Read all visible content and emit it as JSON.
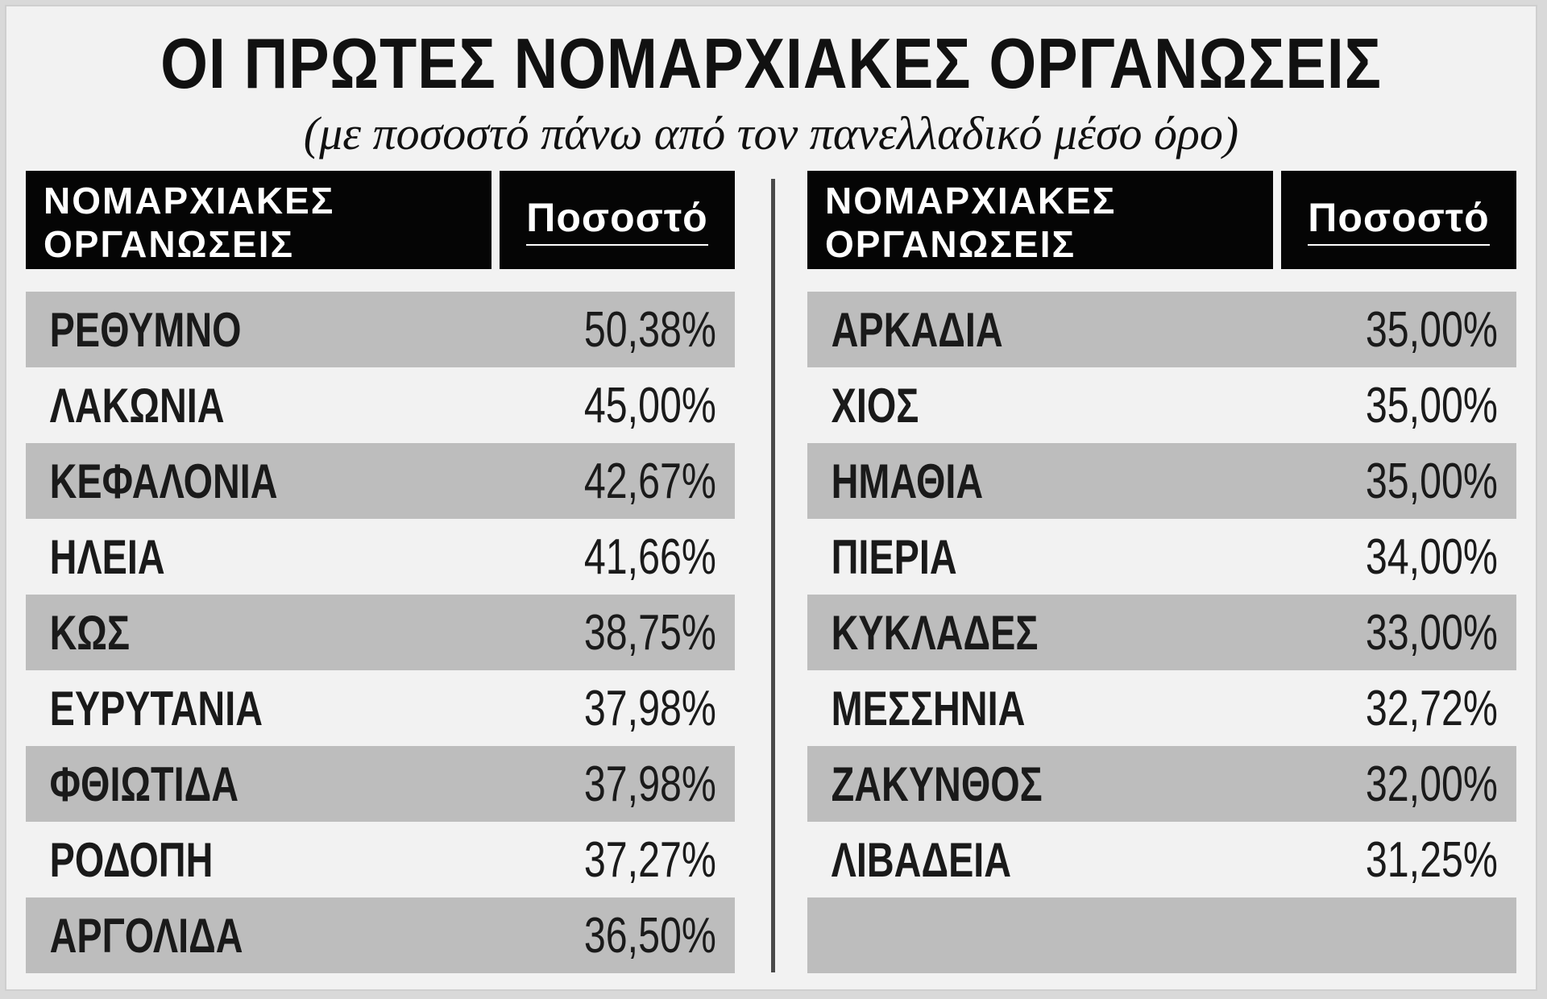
{
  "chart_data": {
    "type": "table",
    "title": "ΟΙ ΠΡΩΤΕΣ ΝΟΜΑΡΧΙΑΚΕΣ ΟΡΓΑΝΩΣΕΙΣ",
    "subtitle": "(με ποσοστό πάνω από τον πανελλαδικό μέσο όρο)",
    "columns": [
      "ΝΟΜΑΡΧΙΑΚΕΣ ΟΡΓΑΝΩΣΕΙΣ",
      "Ποσοστό"
    ],
    "column_header_lines": [
      "ΝΟΜΑΡΧΙΑΚΕΣ",
      "ΟΡΓΑΝΩΣΕΙΣ"
    ],
    "left_table": [
      {
        "name": "ΡΕΘΥΜΝΟ",
        "value": "50,38%"
      },
      {
        "name": "ΛΑΚΩΝΙΑ",
        "value": "45,00%"
      },
      {
        "name": "ΚΕΦΑΛΟΝΙΑ",
        "value": "42,67%"
      },
      {
        "name": "ΗΛΕΙΑ",
        "value": "41,66%"
      },
      {
        "name": "ΚΩΣ",
        "value": "38,75%"
      },
      {
        "name": "ΕΥΡΥΤΑΝΙΑ",
        "value": "37,98%"
      },
      {
        "name": "ΦΘΙΩΤΙΔΑ",
        "value": "37,98%"
      },
      {
        "name": "ΡΟΔΟΠΗ",
        "value": "37,27%"
      },
      {
        "name": "ΑΡΓΟΛΙΔΑ",
        "value": "36,50%"
      }
    ],
    "right_table": [
      {
        "name": "ΑΡΚΑΔΙΑ",
        "value": "35,00%"
      },
      {
        "name": "ΧΙΟΣ",
        "value": "35,00%"
      },
      {
        "name": "ΗΜΑΘΙΑ",
        "value": "35,00%"
      },
      {
        "name": "ΠΙΕΡΙΑ",
        "value": "34,00%"
      },
      {
        "name": "ΚΥΚΛΑΔΕΣ",
        "value": "33,00%"
      },
      {
        "name": "ΜΕΣΣΗΝΙΑ",
        "value": "32,72%"
      },
      {
        "name": "ΖΑΚΥΝΘΟΣ",
        "value": "32,00%"
      },
      {
        "name": "ΛΙΒΑΔΕΙΑ",
        "value": "31,25%"
      },
      {
        "name": "",
        "value": ""
      }
    ]
  },
  "colors": {
    "header_bg": "#050505",
    "header_text": "#ffffff",
    "shaded_row": "#bdbdbd",
    "background": "#f2f2f2"
  }
}
